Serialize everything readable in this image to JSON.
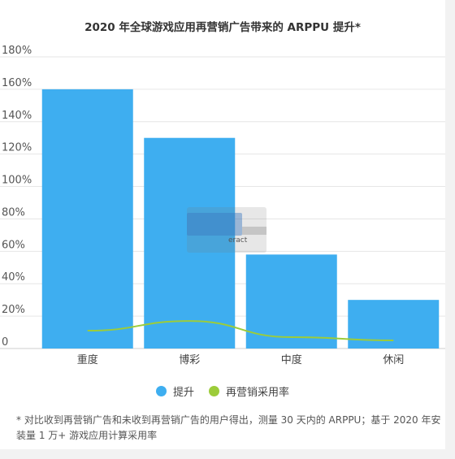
{
  "title": "2020 年全球游戏应用再营销广告带来的 ARPPU 提升*",
  "colors": {
    "bar": "#3eaef0",
    "line": "#9ccc3a",
    "grid": "#e6e6e6"
  },
  "chart_data": {
    "type": "bar",
    "categories": [
      "重度",
      "博彩",
      "中度",
      "休闲"
    ],
    "y_ticks": [
      "0",
      "20%",
      "40%",
      "60%",
      "80%",
      "100%",
      "120%",
      "140%",
      "160%",
      "180%"
    ],
    "ylim": [
      0,
      180
    ],
    "grid": true,
    "legend_position": "bottom",
    "series": [
      {
        "name": "提升",
        "type": "bar",
        "values": [
          160,
          130,
          58,
          30
        ]
      },
      {
        "name": "再营销采用率",
        "type": "line",
        "values": [
          11,
          17,
          7,
          5
        ]
      }
    ]
  },
  "legend": {
    "items": [
      {
        "label": "提升",
        "color": "#3eaef0"
      },
      {
        "label": "再营销采用率",
        "color": "#9ccc3a"
      }
    ]
  },
  "footnote": "* 对比收到再营销广告和未收到再营销广告的用户得出，测量 30 天内的 ARPPU；基于 2020 年安装量 1 万+ 游戏应用计算采用率",
  "overlay": {
    "text": "eract"
  }
}
